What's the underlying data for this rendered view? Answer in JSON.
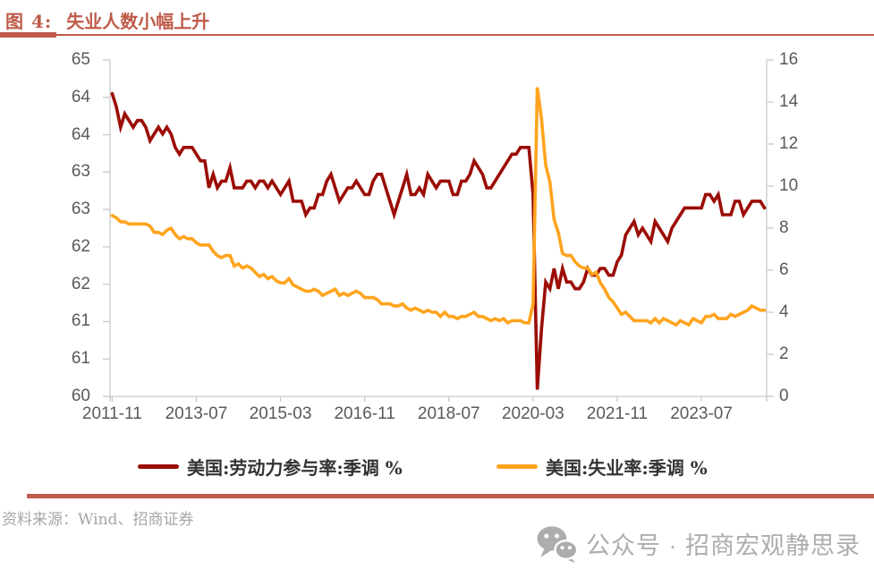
{
  "figure": {
    "title_prefix": "图 4:",
    "title": "失业人数小幅上升",
    "source_label": "资料来源：",
    "source": "Wind、招商证券",
    "watermark_text": "公众号 · 招商宏观静思录"
  },
  "colors": {
    "accent": "#bf5b4a",
    "participation": "#9b0d05",
    "unemployment": "#ffa41e",
    "axis_text": "#595959",
    "legend_text": "#333333",
    "source_text": "#a6a6a6",
    "watermark": "#adadad",
    "axis_line": "#c9c9c9"
  },
  "chart_data": {
    "type": "line",
    "x_unit": "month",
    "x_start": "2011-11",
    "x_end": "2024-10",
    "x_label_interval_months": 20,
    "x_tick_labels": [
      "2011-11",
      "2013-07",
      "2015-03",
      "2016-11",
      "2018-07",
      "2020-03",
      "2021-11",
      "2023-07"
    ],
    "left_axis": {
      "min": 60,
      "max": 65,
      "tick_labels": [
        "65",
        "64",
        "64",
        "63",
        "63",
        "62",
        "62",
        "61",
        "61",
        "60"
      ]
    },
    "right_axis": {
      "min": 0,
      "max": 16,
      "tick_labels": [
        "16",
        "14",
        "12",
        "10",
        "8",
        "6",
        "4",
        "2",
        "0"
      ]
    },
    "grid": "off",
    "legend_position": "bottom",
    "series": [
      {
        "name": "美国:劳动力参与率:季调 %",
        "axis": "left",
        "color": "#9b0d05",
        "values": [
          64.5,
          64.3,
          64.0,
          64.2,
          64.1,
          64.0,
          64.1,
          64.1,
          64.0,
          63.8,
          63.9,
          64.0,
          63.9,
          64.0,
          63.9,
          63.7,
          63.6,
          63.7,
          63.7,
          63.7,
          63.6,
          63.5,
          63.5,
          63.1,
          63.3,
          63.1,
          63.2,
          63.2,
          63.4,
          63.1,
          63.1,
          63.1,
          63.2,
          63.2,
          63.1,
          63.2,
          63.2,
          63.1,
          63.2,
          63.1,
          63.0,
          63.1,
          63.2,
          62.9,
          62.9,
          62.9,
          62.7,
          62.8,
          62.8,
          63.0,
          63.0,
          63.2,
          63.3,
          63.1,
          62.9,
          63.0,
          63.1,
          63.1,
          63.2,
          63.1,
          63.0,
          63.0,
          63.2,
          63.3,
          63.3,
          63.1,
          62.9,
          62.7,
          62.9,
          63.1,
          63.3,
          63.0,
          63.0,
          63.1,
          63.0,
          63.3,
          63.2,
          63.1,
          63.2,
          63.2,
          63.2,
          63.0,
          63.0,
          63.2,
          63.2,
          63.3,
          63.5,
          63.4,
          63.3,
          63.1,
          63.1,
          63.2,
          63.3,
          63.4,
          63.5,
          63.6,
          63.6,
          63.7,
          63.7,
          63.7,
          63.0,
          60.1,
          61.0,
          61.7,
          61.6,
          61.9,
          61.6,
          61.9,
          61.7,
          61.7,
          61.6,
          61.6,
          61.7,
          61.9,
          61.8,
          61.8,
          61.9,
          61.9,
          61.8,
          61.8,
          62.0,
          62.1,
          62.4,
          62.5,
          62.6,
          62.4,
          62.5,
          62.4,
          62.3,
          62.6,
          62.5,
          62.4,
          62.3,
          62.5,
          62.6,
          62.7,
          62.8,
          62.8,
          62.8,
          62.8,
          62.8,
          63.0,
          63.0,
          62.9,
          63.0,
          62.7,
          62.7,
          62.7,
          62.9,
          62.9,
          62.7,
          62.8,
          62.9,
          62.9,
          62.9,
          62.8
        ]
      },
      {
        "name": "美国:失业率:季调 %",
        "axis": "right",
        "color": "#ffa41e",
        "values": [
          8.6,
          8.5,
          8.3,
          8.3,
          8.2,
          8.2,
          8.2,
          8.2,
          8.2,
          8.1,
          7.8,
          7.8,
          7.7,
          7.9,
          8.0,
          7.7,
          7.5,
          7.6,
          7.5,
          7.5,
          7.3,
          7.2,
          7.2,
          7.2,
          6.9,
          6.7,
          6.6,
          6.7,
          6.7,
          6.2,
          6.3,
          6.1,
          6.2,
          6.1,
          5.9,
          5.7,
          5.8,
          5.6,
          5.7,
          5.5,
          5.4,
          5.4,
          5.6,
          5.3,
          5.2,
          5.1,
          5.0,
          5.0,
          5.1,
          5.0,
          4.8,
          4.9,
          5.0,
          5.1,
          4.8,
          4.9,
          4.8,
          4.9,
          5.0,
          4.9,
          4.7,
          4.7,
          4.7,
          4.6,
          4.4,
          4.4,
          4.4,
          4.3,
          4.3,
          4.4,
          4.2,
          4.1,
          4.2,
          4.1,
          4.0,
          4.1,
          4.0,
          4.0,
          3.8,
          4.0,
          3.8,
          3.8,
          3.7,
          3.8,
          3.8,
          3.9,
          4.0,
          3.8,
          3.8,
          3.7,
          3.6,
          3.7,
          3.6,
          3.7,
          3.5,
          3.6,
          3.6,
          3.6,
          3.5,
          3.5,
          4.4,
          14.7,
          13.2,
          11.0,
          10.2,
          8.4,
          7.8,
          6.8,
          6.7,
          6.7,
          6.4,
          6.2,
          6.1,
          6.1,
          5.8,
          5.9,
          5.4,
          5.1,
          4.7,
          4.5,
          4.2,
          3.9,
          4.0,
          3.8,
          3.6,
          3.6,
          3.6,
          3.6,
          3.5,
          3.7,
          3.5,
          3.7,
          3.6,
          3.5,
          3.4,
          3.6,
          3.5,
          3.4,
          3.7,
          3.6,
          3.5,
          3.8,
          3.8,
          3.9,
          3.7,
          3.7,
          3.7,
          3.9,
          3.8,
          3.9,
          4.0,
          4.1,
          4.3,
          4.2,
          4.1,
          4.1
        ]
      }
    ]
  }
}
